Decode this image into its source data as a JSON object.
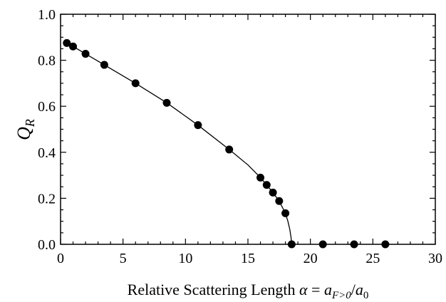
{
  "chart_data": {
    "type": "scatter",
    "xlabel_text": "Relative Scattering Length ",
    "xlabel_symbol": "α",
    "xlabel_eq": " = ",
    "xlabel_a1": "a",
    "xlabel_sub1": "F>0",
    "xlabel_slash": "/",
    "xlabel_a2": "a",
    "xlabel_sub2": "0",
    "ylabel_main": "Q",
    "ylabel_sub": "R",
    "xlim": [
      0,
      30
    ],
    "ylim": [
      0,
      1.0
    ],
    "x_ticks": [
      "0",
      "5",
      "10",
      "15",
      "20",
      "25",
      "30"
    ],
    "y_ticks": [
      "0.0",
      "0.2",
      "0.4",
      "0.6",
      "0.8",
      "1.0"
    ],
    "grid": false,
    "series": [
      {
        "kind": "points",
        "color": "#000000",
        "x": [
          0.5,
          1.0,
          2.0,
          3.5,
          6.0,
          8.5,
          11.0,
          13.5,
          16.0,
          16.5,
          17.0,
          17.5,
          18.0,
          18.5,
          21.0,
          23.5,
          26.0
        ],
        "y": [
          0.875,
          0.86,
          0.828,
          0.78,
          0.7,
          0.615,
          0.518,
          0.412,
          0.29,
          0.258,
          0.225,
          0.188,
          0.135,
          0.0,
          0.0,
          0.0,
          0.0
        ]
      },
      {
        "kind": "fit-curve",
        "color": "#000000",
        "x": [
          0.5,
          1.0,
          2.0,
          3.5,
          6.0,
          8.5,
          11.0,
          13.5,
          15.0,
          16.0,
          16.5,
          17.0,
          17.5,
          18.0,
          18.2,
          18.35,
          18.45,
          18.5
        ],
        "y": [
          0.875,
          0.86,
          0.828,
          0.78,
          0.7,
          0.615,
          0.518,
          0.412,
          0.345,
          0.29,
          0.258,
          0.225,
          0.188,
          0.135,
          0.1,
          0.065,
          0.03,
          0.0
        ]
      }
    ]
  }
}
